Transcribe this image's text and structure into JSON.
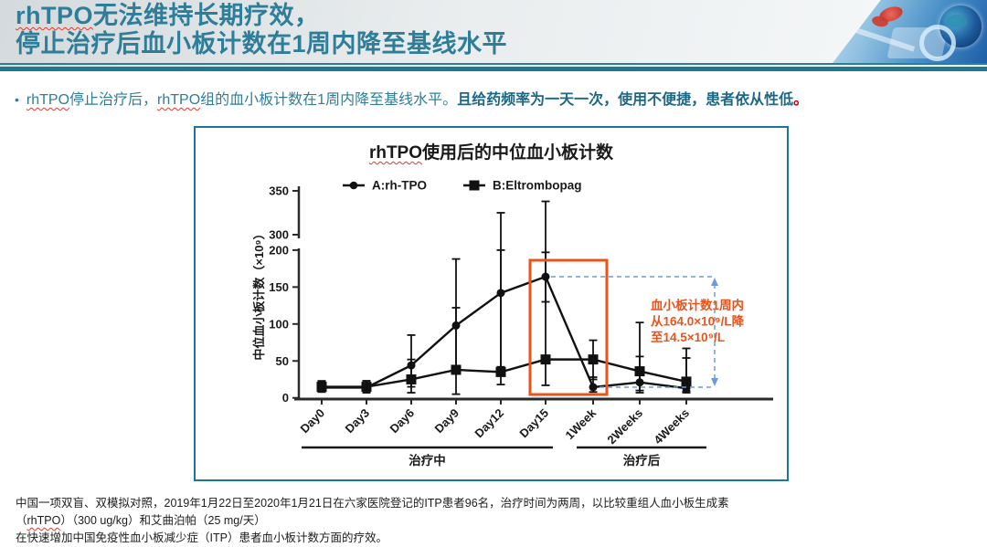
{
  "header": {
    "title_line1_brand": "rhTPO",
    "title_line1_rest": "无法维持长期疗效，",
    "title_line2": "停止治疗后血小板计数在1周内降至基线水平",
    "decoration_name": "medical-technology-illustration",
    "accent_color": "#2e7e99"
  },
  "bullet": {
    "marker": "•",
    "seg1_misspelled": "rhTPO",
    "seg2": "停止治疗后，",
    "seg3_misspelled": "rhTPO",
    "seg4": "组的血小板计数在1周内降至基线水平。",
    "seg5_bold": "且给药频率为一天一次，使用不便捷，患者依从性低",
    "seg6_red": "。"
  },
  "chart_data": {
    "type": "line",
    "title_brand": "rhTPO",
    "title_rest": "使用后的中位血小板计数",
    "ylabel": "中位血小板计数（×10⁹）",
    "categories": [
      "Day0",
      "Day3",
      "Day6",
      "Day9",
      "Day12",
      "Day15",
      "1Week",
      "2Weeks",
      "4Weeks"
    ],
    "y_ticks_lower": [
      0,
      50,
      100,
      150,
      200
    ],
    "y_ticks_upper": [
      300,
      350
    ],
    "axis_break": [
      200,
      300
    ],
    "ylim": [
      0,
      350
    ],
    "grid": false,
    "legend_position": "top-inside",
    "series": [
      {
        "name": "A:rh-TPO",
        "marker": "circle",
        "color": "#111111",
        "values": [
          14,
          14,
          44,
          98,
          142,
          164,
          14.5,
          21,
          13
        ],
        "err_low": [
          8,
          7,
          15,
          35,
          42,
          130,
          8,
          10,
          7
        ],
        "err_high": [
          23,
          23,
          85,
          188,
          325,
          338,
          28,
          56,
          54
        ]
      },
      {
        "name": "B:Eltrombopag",
        "marker": "square",
        "color": "#111111",
        "values": [
          15,
          15,
          25,
          38,
          35,
          52,
          52,
          36,
          22
        ],
        "err_low": [
          8,
          7,
          7,
          5,
          18,
          17,
          25,
          7,
          9
        ],
        "err_high": [
          22,
          23,
          52,
          122,
          200,
          197,
          78,
          102,
          67
        ]
      }
    ],
    "x_groups": [
      {
        "label": "治疗中",
        "from": 0,
        "to": 5
      },
      {
        "label": "治疗后",
        "from": 6,
        "to": 8
      }
    ],
    "highlight_box": {
      "from_idx": 5,
      "to_idx": 6,
      "color": "#e8541c"
    },
    "callout": {
      "lines": [
        "血小板计数1周内",
        "从164.0×10⁹/L降",
        "至14.5×10⁹/L"
      ],
      "text_color": "#e8541c",
      "arrow_color": "#6e9bd8",
      "high_value": 164,
      "low_value": 14.5
    }
  },
  "footer": {
    "line1_part1": "中国一项双盲、双模拟对照，2019年1月22日至2020年1月21日在六家医院登记的ITP患者96名，治疗时间为两周，以比较重组人血小板生成素（",
    "line1_misspelled": "rhTPO",
    "line1_part2": "）（300 ug/kg）和艾曲泊帕（25 mg/天）",
    "line2": "在快速增加中国免疫性血小板减少症（ITP）患者血小板计数方面的疗效。"
  }
}
